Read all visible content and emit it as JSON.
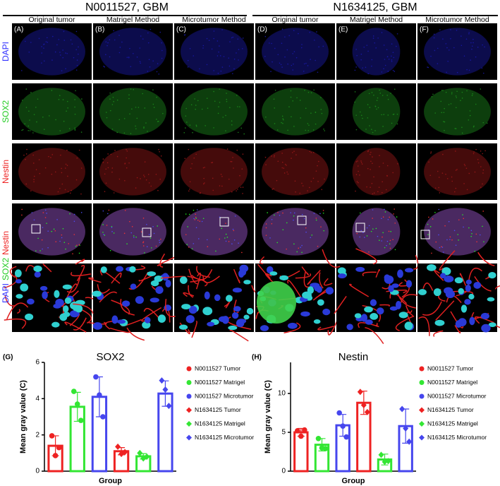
{
  "figure": {
    "groups": [
      "N0011527, GBM",
      "N1634125, GBM"
    ],
    "columns": [
      "Original tumor",
      "Matrigel Method",
      "Microtumor Method",
      "Original tumor",
      "Matrigel Method",
      "Microtumor Method"
    ],
    "panels": [
      "(A)",
      "(B)",
      "(C)",
      "(D)",
      "(E)",
      "(F)"
    ],
    "rows": [
      [
        {
          "text": "DAPI",
          "color": "#3030ff"
        }
      ],
      [
        {
          "text": "SOX2",
          "color": "#22cc22"
        }
      ],
      [
        {
          "text": "Nestin",
          "color": "#ee2222"
        }
      ],
      [
        {
          "text": "DAPI",
          "color": "#3030ff"
        },
        {
          "text": "SOX2",
          "color": "#22cc22"
        },
        {
          "text": "Nestin",
          "color": "#ee2222"
        }
      ]
    ]
  },
  "chart_data": [
    {
      "type": "bar",
      "panel": "(G)",
      "title": "SOX2",
      "ylabel": "Mean gray value (C)",
      "xlabel": "Group",
      "ylim": [
        0,
        6
      ],
      "yticks": [
        0,
        2,
        4,
        6
      ],
      "series": [
        {
          "name": "N0011527 Tumor",
          "color": "#ee2222",
          "marker": "circle",
          "values": [
            1.4
          ],
          "errors": [
            0.55
          ],
          "points": [
            [
              1.95,
              0.86,
              1.3
            ]
          ]
        },
        {
          "name": "N0011527 Matrigel",
          "color": "#33e633",
          "marker": "circle",
          "values": [
            3.55
          ],
          "errors": [
            0.8
          ],
          "points": [
            [
              4.4,
              3.7,
              2.8
            ]
          ]
        },
        {
          "name": "N0011527 Microtumor",
          "color": "#4646ee",
          "marker": "circle",
          "values": [
            4.1
          ],
          "errors": [
            1.1
          ],
          "points": [
            [
              5.2,
              4.2,
              3.0
            ]
          ]
        },
        {
          "name": "N1634125 Tumor",
          "color": "#ee2222",
          "marker": "diamond",
          "values": [
            1.1
          ],
          "errors": [
            0.2
          ],
          "points": [
            [
              1.35,
              0.95,
              1.05
            ]
          ]
        },
        {
          "name": "N1634125 Matrigel",
          "color": "#33e633",
          "marker": "diamond",
          "values": [
            0.82
          ],
          "errors": [
            0.15
          ],
          "points": [
            [
              1.0,
              0.7,
              0.8
            ]
          ]
        },
        {
          "name": "N1634125 Microtumor",
          "color": "#4646ee",
          "marker": "diamond",
          "values": [
            4.28
          ],
          "errors": [
            0.7
          ],
          "points": [
            [
              5.0,
              4.5,
              3.6
            ]
          ]
        }
      ]
    },
    {
      "type": "bar",
      "panel": "(H)",
      "title": "Nestin",
      "ylabel": "Mean gray value (C)",
      "xlabel": "Group",
      "ylim": [
        0,
        14
      ],
      "yticks": [
        0,
        5,
        10
      ],
      "series": [
        {
          "name": "N0011527 Tumor",
          "color": "#ee2222",
          "marker": "circle",
          "values": [
            5.0
          ],
          "errors": [
            0.5
          ],
          "points": [
            [
              5.2,
              4.5,
              5.3
            ]
          ]
        },
        {
          "name": "N0011527 Matrigel",
          "color": "#33e633",
          "marker": "circle",
          "values": [
            3.4
          ],
          "errors": [
            0.8
          ],
          "points": [
            [
              4.2,
              3.0,
              2.9
            ]
          ]
        },
        {
          "name": "N0011527 Microtumor",
          "color": "#4646ee",
          "marker": "circle",
          "values": [
            5.9
          ],
          "errors": [
            1.4
          ],
          "points": [
            [
              7.5,
              5.8,
              4.4
            ]
          ]
        },
        {
          "name": "N1634125 Tumor",
          "color": "#ee2222",
          "marker": "diamond",
          "values": [
            8.8
          ],
          "errors": [
            1.5
          ],
          "points": [
            [
              10.2,
              8.5,
              7.6
            ]
          ]
        },
        {
          "name": "N1634125 Matrigel",
          "color": "#33e633",
          "marker": "diamond",
          "values": [
            1.5
          ],
          "errors": [
            0.7
          ],
          "points": [
            [
              2.1,
              1.2,
              1.3
            ]
          ]
        },
        {
          "name": "N1634125 Microtumor",
          "color": "#4646ee",
          "marker": "diamond",
          "values": [
            5.8
          ],
          "errors": [
            2.2
          ],
          "points": [
            [
              8.0,
              5.5,
              3.8
            ]
          ]
        }
      ]
    }
  ]
}
